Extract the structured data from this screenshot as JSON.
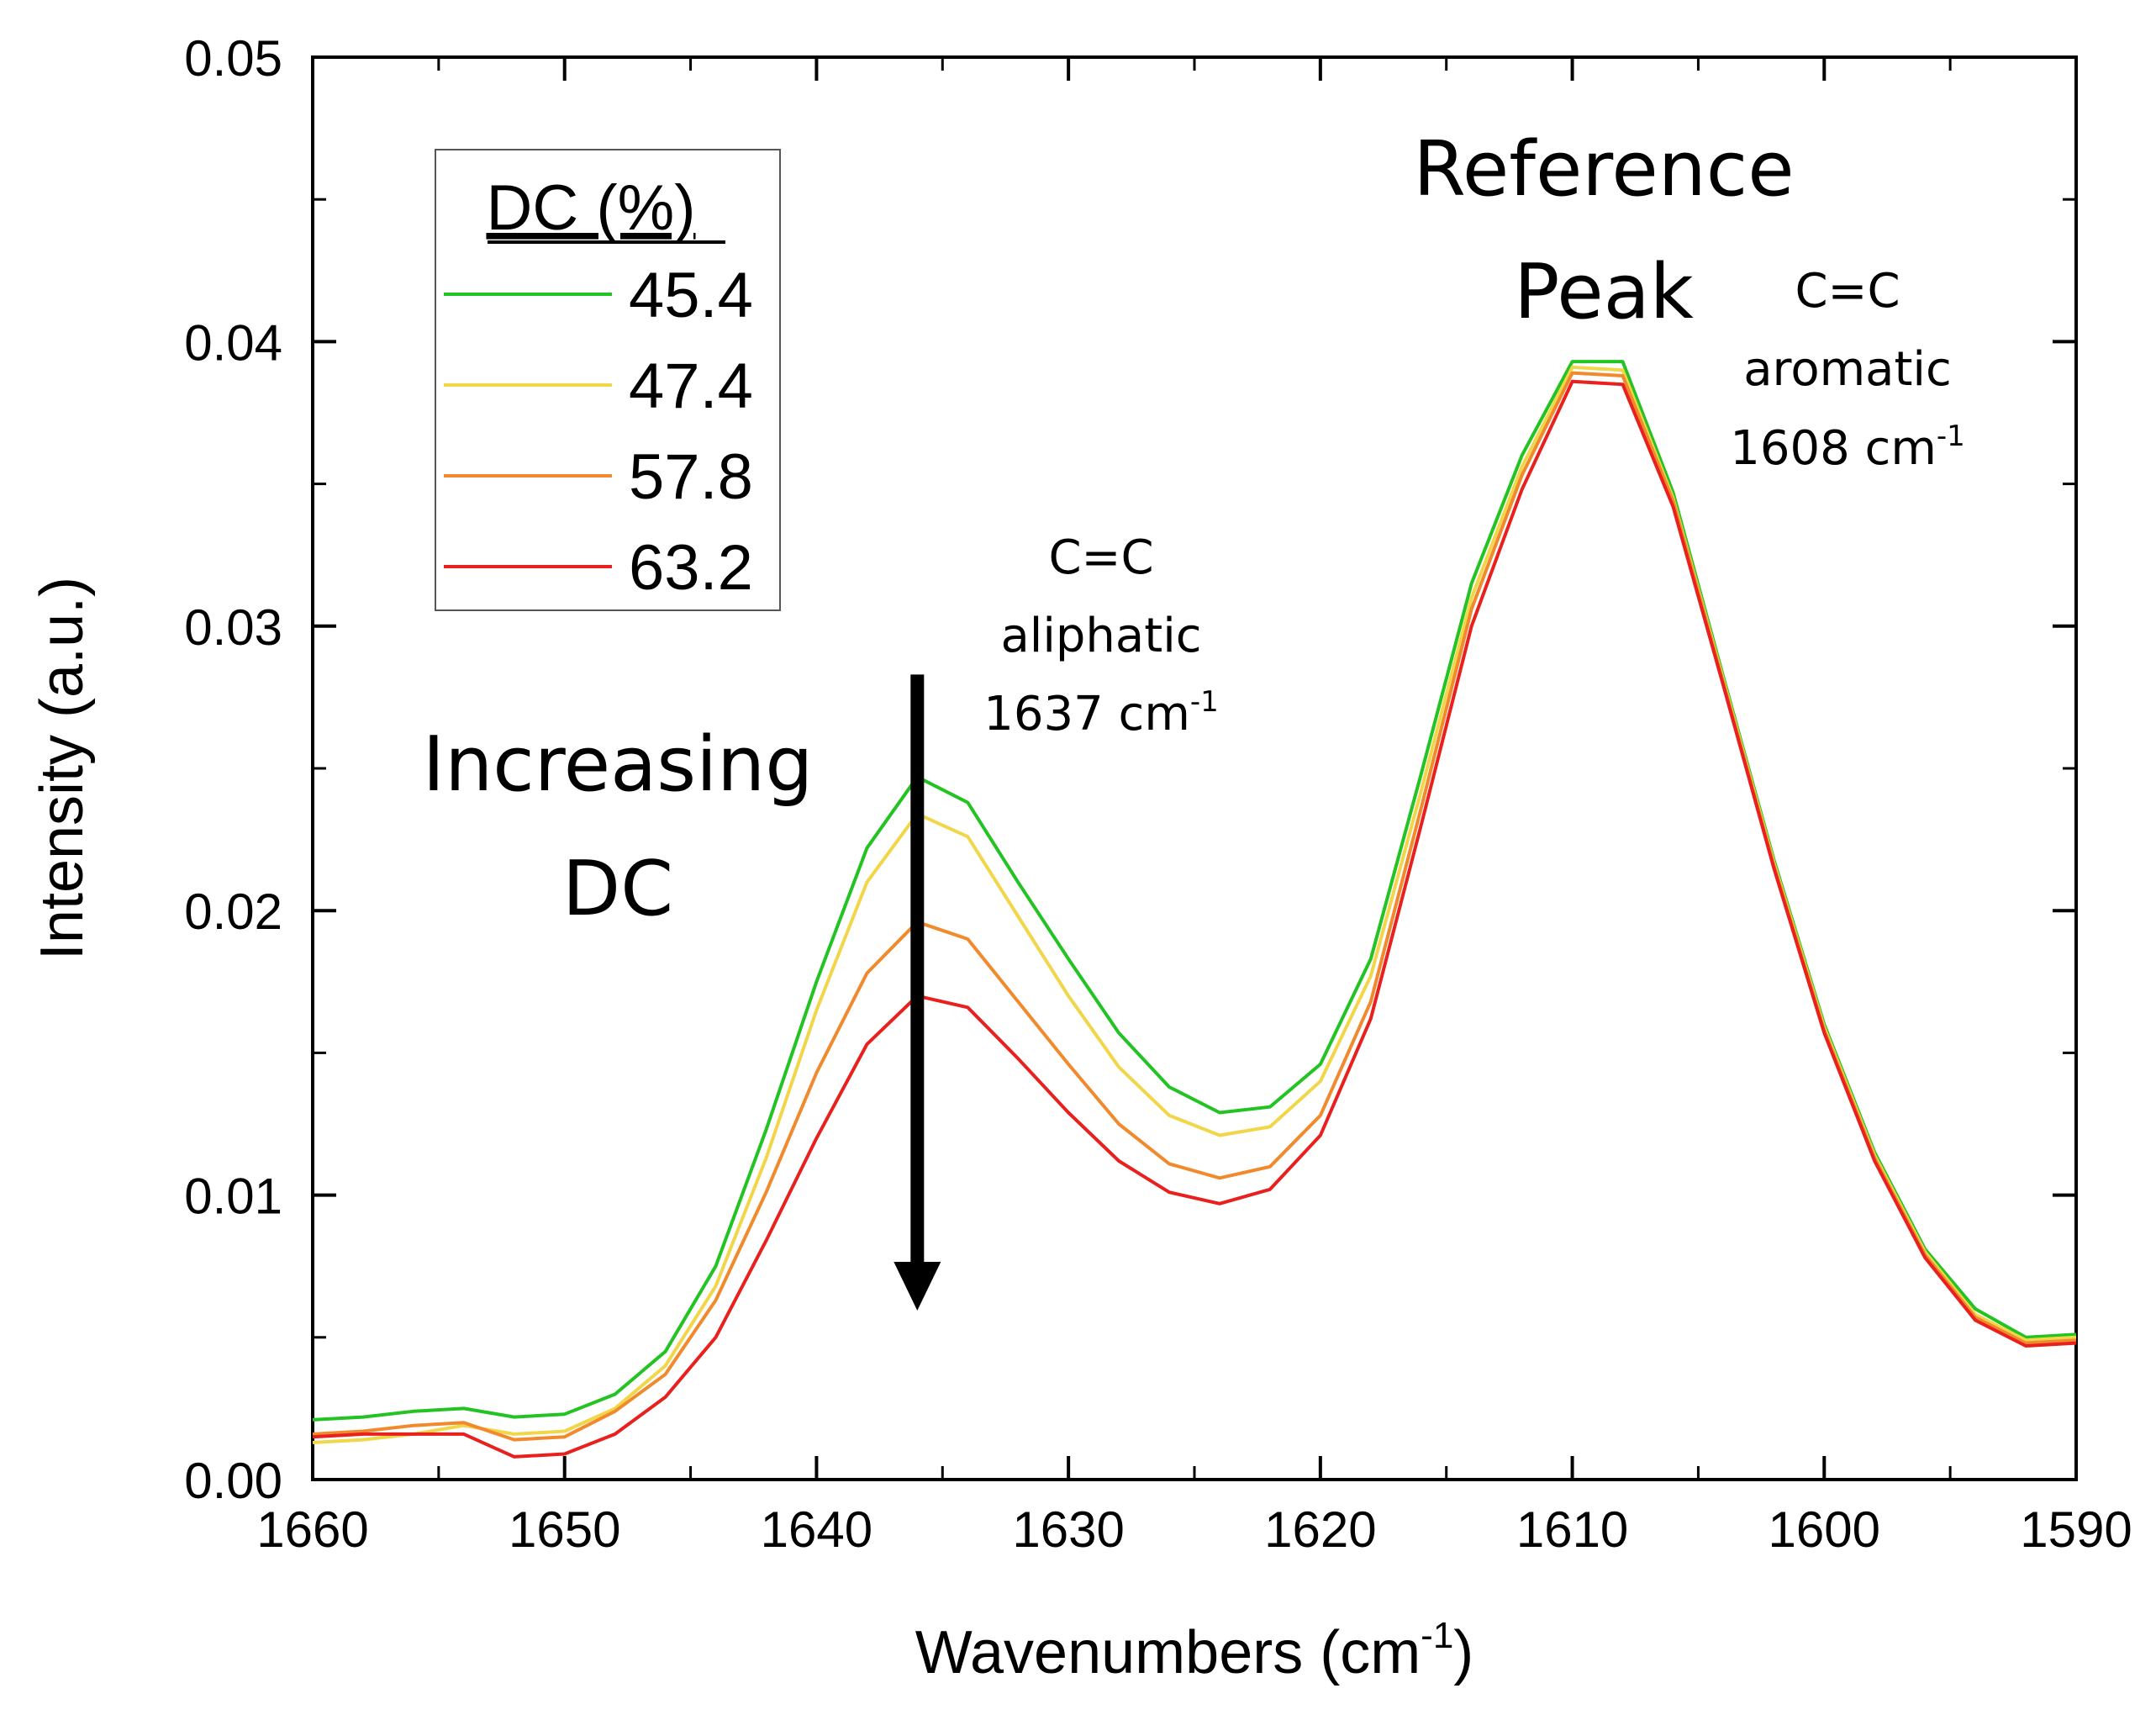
{
  "chart_data": {
    "type": "line",
    "xlabel": {
      "main": "Wavenumbers (cm",
      "sup": "-1",
      "close": ")"
    },
    "ylabel": "Intensity (a.u.)",
    "xlim": [
      1660,
      1590
    ],
    "ylim": [
      0.0,
      0.05
    ],
    "x_ticks": [
      1660,
      1650,
      1640,
      1630,
      1620,
      1610,
      1600,
      1590
    ],
    "x_tick_labels": [
      "1660",
      "1650",
      "1640",
      "1630",
      "1620",
      "1610",
      "1600",
      "1590"
    ],
    "y_ticks": [
      0.0,
      0.01,
      0.02,
      0.03,
      0.04,
      0.05
    ],
    "y_tick_labels": [
      "0.00",
      "0.01",
      "0.02",
      "0.03",
      "0.04",
      "0.05"
    ],
    "grid": false,
    "legend": {
      "title": "DC (%)",
      "position": "top-left"
    },
    "x": [
      1660,
      1658,
      1656,
      1654,
      1652,
      1650,
      1648,
      1646,
      1644,
      1642,
      1640,
      1638,
      1636,
      1634,
      1632,
      1630,
      1628,
      1626,
      1624,
      1622,
      1620,
      1618,
      1616,
      1614,
      1612,
      1610,
      1608,
      1606,
      1604,
      1602,
      1600,
      1598,
      1596,
      1594,
      1592,
      1590
    ],
    "series": [
      {
        "name": "45.4",
        "color": "#22c322",
        "values": [
          0.0021,
          0.0022,
          0.0024,
          0.0025,
          0.0022,
          0.0023,
          0.003,
          0.0045,
          0.0075,
          0.0123,
          0.0175,
          0.0222,
          0.0247,
          0.0238,
          0.021,
          0.0183,
          0.0157,
          0.0138,
          0.0129,
          0.0131,
          0.0146,
          0.0183,
          0.0248,
          0.0315,
          0.036,
          0.0393,
          0.0393,
          0.0347,
          0.0282,
          0.0218,
          0.016,
          0.0115,
          0.0081,
          0.006,
          0.005,
          0.0051
        ]
      },
      {
        "name": "47.4",
        "color": "#f2d64a",
        "values": [
          0.0013,
          0.0014,
          0.0016,
          0.0019,
          0.0016,
          0.0017,
          0.0025,
          0.004,
          0.0068,
          0.0113,
          0.0165,
          0.021,
          0.0234,
          0.0226,
          0.0198,
          0.017,
          0.0145,
          0.0128,
          0.0121,
          0.0124,
          0.014,
          0.0177,
          0.0242,
          0.031,
          0.0356,
          0.0391,
          0.039,
          0.0345,
          0.0281,
          0.0217,
          0.0159,
          0.0114,
          0.008,
          0.0058,
          0.0049,
          0.005
        ]
      },
      {
        "name": "57.8",
        "color": "#f08a2c",
        "values": [
          0.0016,
          0.0017,
          0.0019,
          0.002,
          0.0014,
          0.0015,
          0.0024,
          0.0037,
          0.0063,
          0.0101,
          0.0143,
          0.0178,
          0.0196,
          0.019,
          0.0168,
          0.0146,
          0.0125,
          0.0111,
          0.0106,
          0.011,
          0.0128,
          0.0168,
          0.0236,
          0.0306,
          0.0353,
          0.0389,
          0.0388,
          0.0344,
          0.028,
          0.0216,
          0.0158,
          0.0113,
          0.0079,
          0.0057,
          0.0048,
          0.0049
        ]
      },
      {
        "name": "63.2",
        "color": "#e8201e",
        "values": [
          0.0015,
          0.0016,
          0.0016,
          0.0016,
          0.0008,
          0.0009,
          0.0016,
          0.0029,
          0.005,
          0.0084,
          0.012,
          0.0153,
          0.017,
          0.0166,
          0.0148,
          0.0129,
          0.0112,
          0.0101,
          0.0097,
          0.0102,
          0.0121,
          0.0162,
          0.023,
          0.03,
          0.0348,
          0.0386,
          0.0385,
          0.0342,
          0.0279,
          0.0215,
          0.0157,
          0.0112,
          0.0078,
          0.0056,
          0.0047,
          0.0048
        ]
      }
    ],
    "annotations": {
      "reference_line1": "Reference",
      "reference_line2": "Peak",
      "aromatic_line1": "C=C",
      "aromatic_line2": "aromatic",
      "aromatic_line3": "1608 cm",
      "aromatic_sup": "-1",
      "aliphatic_line1": "C=C",
      "aliphatic_line2": "aliphatic",
      "aliphatic_line3": "1637 cm",
      "aliphatic_sup": "-1",
      "increasing_line1": "Increasing",
      "increasing_line2": "DC",
      "arrow_x": 1636,
      "arrow_from_y": 0.0283,
      "arrow_to_y": 0.006
    }
  }
}
